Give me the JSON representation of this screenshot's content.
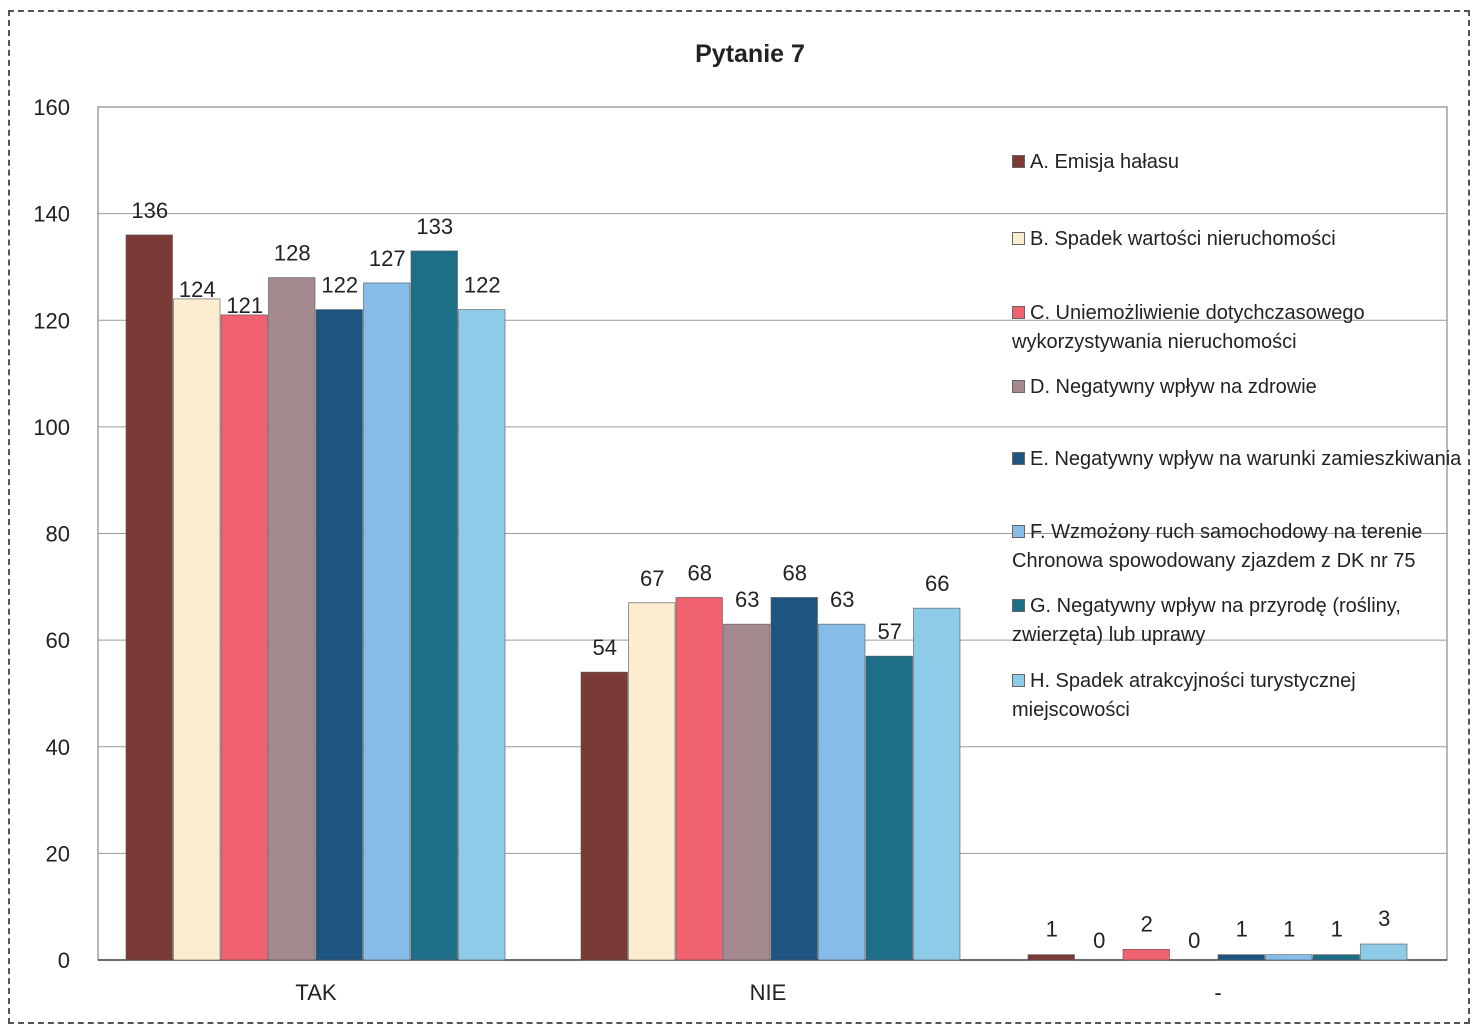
{
  "chart_data": {
    "type": "bar",
    "title": "Pytanie 7",
    "xlabel": "",
    "ylabel": "",
    "categories": [
      "TAK",
      "NIE",
      "-"
    ],
    "ylim": [
      0,
      160
    ],
    "yticks": [
      0,
      20,
      40,
      60,
      80,
      100,
      120,
      140,
      160
    ],
    "grid": true,
    "legend_position": "right",
    "series": [
      {
        "name": "A. Emisja hałasu",
        "color": "#7a3a35",
        "values": [
          136,
          54,
          1
        ]
      },
      {
        "name": "B. Spadek wartości nieruchomości",
        "color": "#fcedd0",
        "values": [
          124,
          67,
          0
        ]
      },
      {
        "name": "C. Uniemożliwienie dotychczasowego wykorzystywania nieruchomości",
        "color": "#f06270",
        "values": [
          121,
          68,
          2
        ]
      },
      {
        "name": "D. Negatywny wpływ na zdrowie",
        "color": "#a4898f",
        "values": [
          128,
          63,
          0
        ]
      },
      {
        "name": "E. Negatywny wpływ na warunki zamieszkiwania",
        "color": "#1d5580",
        "values": [
          122,
          68,
          1
        ]
      },
      {
        "name": "F. Wzmożony ruch samochodowy na terenie Chronowa spowodowany zjazdem z DK nr 75",
        "color": "#86bde8",
        "values": [
          127,
          63,
          1
        ]
      },
      {
        "name": "G. Negatywny wpływ na przyrodę (rośliny, zwierzęta) lub uprawy",
        "color": "#1d6e86",
        "values": [
          133,
          57,
          1
        ]
      },
      {
        "name": "H. Spadek atrakcyjności turystycznej miejscowości",
        "color": "#8ecbe8",
        "values": [
          122,
          66,
          3
        ]
      }
    ]
  }
}
